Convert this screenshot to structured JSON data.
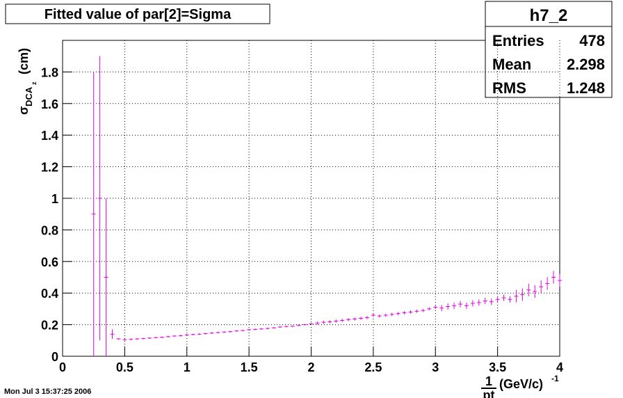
{
  "chart_data": {
    "type": "errorbar",
    "title": "Fitted value of par[2]=Sigma",
    "y_label": {
      "symbol": "σ",
      "sub": "DCA",
      "subsub": "z",
      "unit": "(cm)"
    },
    "x_label": {
      "numerator": "1",
      "denominator": "pt",
      "unit": "(GeV/c)",
      "power": "-1"
    },
    "stats": {
      "name": "h7_2",
      "rows": [
        [
          "Entries",
          "478"
        ],
        [
          "Mean",
          "2.298"
        ],
        [
          "RMS",
          "1.248"
        ]
      ]
    },
    "date": "Mon Jul  3 15:37:25 2006",
    "xlim": [
      0,
      4
    ],
    "xticks": [
      0,
      0.5,
      1,
      1.5,
      2,
      2.5,
      3,
      3.5,
      4
    ],
    "ylim": [
      0,
      2
    ],
    "yticks": [
      0,
      0.2,
      0.4,
      0.6,
      0.8,
      1,
      1.2,
      1.4,
      1.6,
      1.8
    ],
    "grid": true,
    "color": "#e600e6",
    "x": [
      0.25,
      0.3,
      0.35,
      0.4,
      0.45,
      0.5,
      0.55,
      0.6,
      0.65,
      0.7,
      0.75,
      0.8,
      0.85,
      0.9,
      0.95,
      1,
      1.05,
      1.1,
      1.15,
      1.2,
      1.25,
      1.3,
      1.35,
      1.4,
      1.45,
      1.5,
      1.55,
      1.6,
      1.65,
      1.7,
      1.75,
      1.8,
      1.85,
      1.9,
      1.95,
      2,
      2.05,
      2.1,
      2.15,
      2.2,
      2.25,
      2.3,
      2.35,
      2.4,
      2.45,
      2.5,
      2.55,
      2.6,
      2.65,
      2.7,
      2.75,
      2.8,
      2.85,
      2.9,
      2.95,
      3,
      3.05,
      3.1,
      3.15,
      3.2,
      3.25,
      3.3,
      3.35,
      3.4,
      3.45,
      3.5,
      3.55,
      3.6,
      3.65,
      3.7,
      3.75,
      3.8,
      3.85,
      3.9,
      3.95,
      4
    ],
    "values": [
      0.9,
      1.0,
      0.5,
      0.14,
      0.11,
      0.105,
      0.107,
      0.11,
      0.112,
      0.115,
      0.118,
      0.12,
      0.124,
      0.128,
      0.13,
      0.135,
      0.138,
      0.14,
      0.143,
      0.147,
      0.15,
      0.153,
      0.156,
      0.16,
      0.163,
      0.168,
      0.17,
      0.173,
      0.176,
      0.18,
      0.185,
      0.188,
      0.19,
      0.195,
      0.2,
      0.205,
      0.21,
      0.215,
      0.218,
      0.222,
      0.227,
      0.232,
      0.236,
      0.24,
      0.245,
      0.26,
      0.255,
      0.26,
      0.265,
      0.27,
      0.275,
      0.28,
      0.285,
      0.29,
      0.3,
      0.31,
      0.305,
      0.315,
      0.32,
      0.33,
      0.32,
      0.335,
      0.34,
      0.35,
      0.345,
      0.36,
      0.37,
      0.36,
      0.38,
      0.39,
      0.42,
      0.41,
      0.44,
      0.46,
      0.5,
      0.48
    ],
    "errors": [
      0.9,
      0.9,
      0.5,
      0.03,
      0.005,
      0.005,
      0.005,
      0.005,
      0.005,
      0.005,
      0.005,
      0.005,
      0.005,
      0.005,
      0.005,
      0.005,
      0.005,
      0.005,
      0.005,
      0.005,
      0.005,
      0.005,
      0.005,
      0.005,
      0.005,
      0.005,
      0.005,
      0.005,
      0.005,
      0.005,
      0.005,
      0.005,
      0.005,
      0.005,
      0.005,
      0.005,
      0.01,
      0.01,
      0.01,
      0.01,
      0.01,
      0.01,
      0.01,
      0.01,
      0.01,
      0.01,
      0.01,
      0.01,
      0.01,
      0.01,
      0.01,
      0.01,
      0.01,
      0.01,
      0.01,
      0.01,
      0.02,
      0.02,
      0.02,
      0.02,
      0.02,
      0.02,
      0.02,
      0.02,
      0.02,
      0.02,
      0.02,
      0.02,
      0.04,
      0.04,
      0.04,
      0.04,
      0.04,
      0.04,
      0.04,
      0.04
    ]
  }
}
